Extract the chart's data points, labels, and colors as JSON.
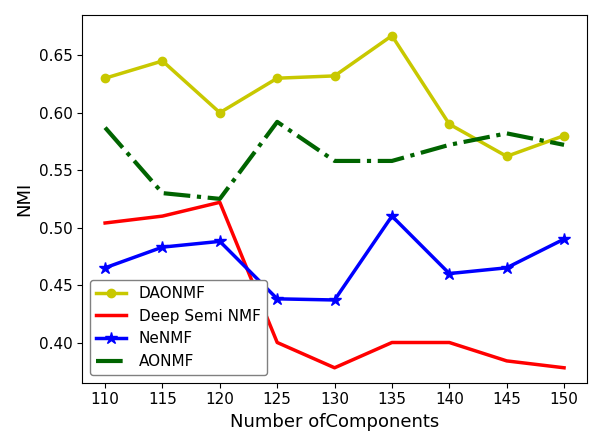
{
  "x": [
    110,
    115,
    120,
    125,
    130,
    135,
    140,
    145,
    150
  ],
  "DAONMF": [
    0.63,
    0.645,
    0.6,
    0.63,
    0.632,
    0.667,
    0.59,
    0.562,
    0.58
  ],
  "DeepSemiNMF": [
    0.504,
    0.51,
    0.522,
    0.4,
    0.378,
    0.4,
    0.4,
    0.384,
    0.378
  ],
  "NeNMF": [
    0.465,
    0.483,
    0.488,
    0.438,
    0.437,
    0.51,
    0.46,
    0.465,
    0.49
  ],
  "AONMF": [
    0.587,
    0.53,
    0.525,
    0.592,
    0.558,
    0.558,
    0.572,
    0.582,
    0.572
  ],
  "DAONMF_color": "#c8c800",
  "DeepSemiNMF_color": "#ff0000",
  "NeNMF_color": "#0000ff",
  "AONMF_color": "#006400",
  "xlabel": "Number ofComponents",
  "ylabel": "NMI",
  "ylim": [
    0.365,
    0.685
  ],
  "yticks": [
    0.4,
    0.45,
    0.5,
    0.55,
    0.6,
    0.65
  ],
  "legend_labels": [
    "DAONMF",
    "Deep Semi NMF",
    "NeNMF",
    "AONMF"
  ],
  "legend_loc": "lower left"
}
